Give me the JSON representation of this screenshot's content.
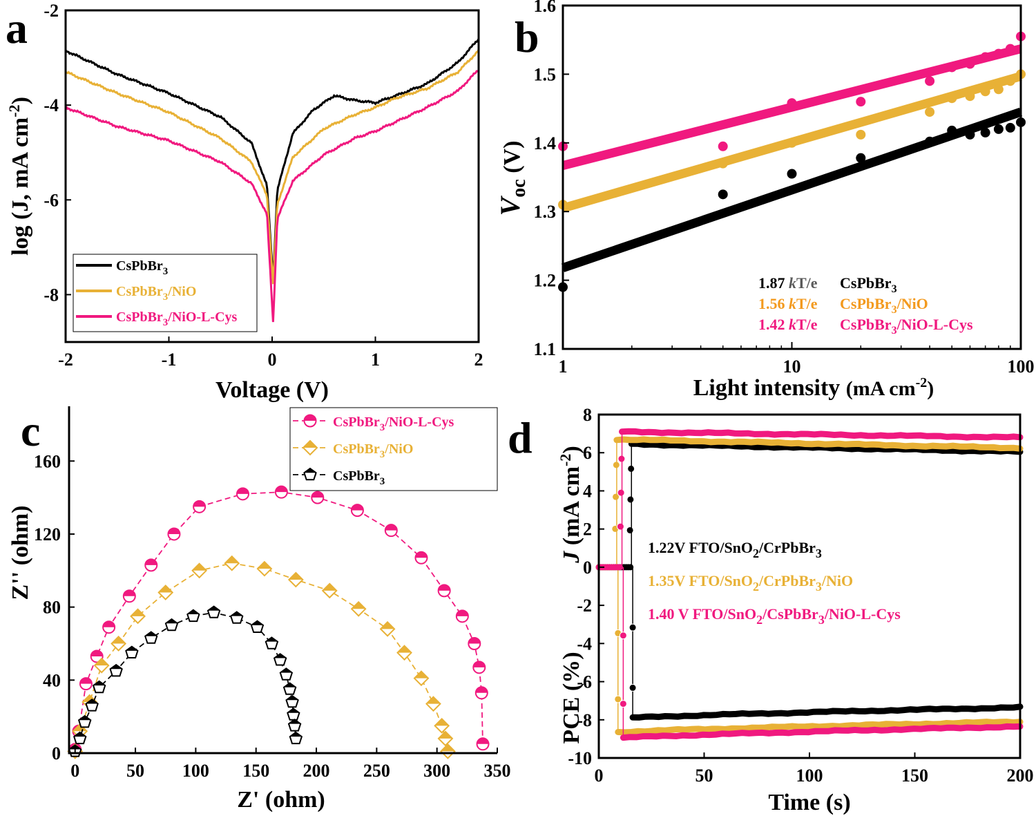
{
  "colors": {
    "black": "#000000",
    "gold": "#E8B136",
    "pink": "#F0197F",
    "gray": "#5a5a5a",
    "orange": "#F39A1E"
  },
  "chart_data": [
    {
      "id": "a",
      "panel_label": "a",
      "type": "line",
      "xlabel": "Voltage (V)",
      "ylabel": "log (J, mA cm",
      "ylabel_sup": "-2",
      "ylabel_close": ")",
      "xlim": [
        -2,
        2
      ],
      "ylim": [
        -9,
        -2
      ],
      "xticks": [
        "-2",
        "-1",
        "0",
        "1",
        "2"
      ],
      "yticks": [
        "-2",
        "-4",
        "-6",
        "-8"
      ],
      "legend": [
        {
          "base": "CsPbBr",
          "sub": "3",
          "rest": "",
          "color": "#000000"
        },
        {
          "base": "CsPbBr",
          "sub": "3",
          "rest": "/NiO",
          "color": "#E8B136"
        },
        {
          "base": "CsPbBr",
          "sub": "3",
          "rest": "/NiO-L-Cys",
          "color": "#F0197F"
        }
      ],
      "series": [
        {
          "name": "CsPbBr3",
          "color": "#000000",
          "x": [
            -2,
            -1.5,
            -1.0,
            -0.5,
            -0.2,
            -0.05,
            0.01,
            0.05,
            0.2,
            0.4,
            0.6,
            0.8,
            1.0,
            1.2,
            1.5,
            1.8,
            2.0
          ],
          "y": [
            -2.85,
            -3.35,
            -3.75,
            -4.25,
            -4.8,
            -5.7,
            -7.7,
            -5.8,
            -4.6,
            -4.1,
            -3.8,
            -3.9,
            -3.95,
            -3.8,
            -3.55,
            -3.1,
            -2.6
          ]
        },
        {
          "name": "CsPbBr3/NiO",
          "color": "#E8B136",
          "x": [
            -2,
            -1.5,
            -1.0,
            -0.5,
            -0.2,
            -0.05,
            0.01,
            0.05,
            0.2,
            0.5,
            0.8,
            1.0,
            1.2,
            1.5,
            1.8,
            2.0
          ],
          "y": [
            -3.3,
            -3.75,
            -4.15,
            -4.7,
            -5.2,
            -5.9,
            -7.8,
            -6.1,
            -5.1,
            -4.5,
            -4.2,
            -4.05,
            -3.85,
            -3.65,
            -3.3,
            -2.85
          ]
        },
        {
          "name": "CsPbBr3/NiO-L-Cys",
          "color": "#F0197F",
          "x": [
            -2,
            -1.5,
            -1.0,
            -0.5,
            -0.2,
            -0.05,
            0.01,
            0.05,
            0.2,
            0.5,
            0.8,
            1.0,
            1.2,
            1.5,
            1.8,
            2.0
          ],
          "y": [
            -4.05,
            -4.45,
            -4.75,
            -5.2,
            -5.65,
            -6.3,
            -8.6,
            -6.4,
            -5.6,
            -5.05,
            -4.7,
            -4.55,
            -4.35,
            -4.05,
            -3.7,
            -3.25
          ]
        }
      ]
    },
    {
      "id": "b",
      "panel_label": "b",
      "type": "scatter",
      "xscale": "log",
      "xlabel": "Light intensity",
      "xlabel_unit": "(mA cm",
      "xlabel_sup": "-2",
      "xlabel_close": ")",
      "ylabel_main": "V",
      "ylabel_sub": "oc",
      "ylabel_unit": "(V)",
      "xlim": [
        1,
        100
      ],
      "ylim": [
        1.1,
        1.6
      ],
      "xticks": [
        {
          "v": 1,
          "label": "1"
        },
        {
          "v": 10,
          "label": "10"
        },
        {
          "v": 100,
          "label": "100"
        }
      ],
      "yticks": [
        "1.1",
        "1.2",
        "1.3",
        "1.4",
        "1.5",
        "1.6"
      ],
      "annotations": [
        {
          "value": "1.87",
          "unit_k": "k",
          "unit_rest": "T/e",
          "base": "CsPbBr",
          "sub": "3",
          "rest": "",
          "color": "#000000",
          "unit_color": "#5a5a5a"
        },
        {
          "value": "1.56",
          "unit_k": "k",
          "unit_rest": "T/e",
          "base": "CsPbBr",
          "sub": "3",
          "rest": "/NiO",
          "color": "#F39A1E",
          "unit_color": "#F39A1E"
        },
        {
          "value": "1.42",
          "unit_k": "k",
          "unit_rest": "T/e",
          "base": "CsPbBr",
          "sub": "3",
          "rest": "/NiO-L-Cys",
          "color": "#F0197F",
          "unit_color": "#F0197F"
        }
      ],
      "series": [
        {
          "name": "CsPbBr3",
          "color": "#000000",
          "fit": [
            1.218,
            1.445
          ],
          "x": [
            1,
            5,
            10,
            20,
            40,
            50,
            60,
            70,
            80,
            90,
            100
          ],
          "y": [
            1.19,
            1.325,
            1.355,
            1.378,
            1.402,
            1.418,
            1.412,
            1.415,
            1.42,
            1.422,
            1.43
          ]
        },
        {
          "name": "CsPbBr3/NiO",
          "color": "#E8B136",
          "fit": [
            1.305,
            1.497
          ],
          "x": [
            1,
            5,
            10,
            20,
            40,
            50,
            60,
            70,
            80,
            90,
            100
          ],
          "y": [
            1.31,
            1.37,
            1.4,
            1.412,
            1.445,
            1.465,
            1.468,
            1.475,
            1.478,
            1.49,
            1.5
          ]
        },
        {
          "name": "CsPbBr3/NiO-L-Cys",
          "color": "#F0197F",
          "fit": [
            1.367,
            1.537
          ],
          "x": [
            1,
            5,
            10,
            20,
            40,
            50,
            60,
            70,
            80,
            90,
            100
          ],
          "y": [
            1.395,
            1.395,
            1.458,
            1.46,
            1.49,
            1.51,
            1.515,
            1.525,
            1.53,
            1.537,
            1.555
          ]
        }
      ]
    },
    {
      "id": "c",
      "panel_label": "c",
      "type": "scatter",
      "xlabel": "Z' (ohm)",
      "ylabel": "Z'' (ohm)",
      "xlim": [
        -5,
        350
      ],
      "ylim": [
        0,
        190
      ],
      "xticks": [
        "0",
        "50",
        "100",
        "150",
        "200",
        "250",
        "300",
        "350"
      ],
      "yticks": [
        "0",
        "40",
        "80",
        "120",
        "160"
      ],
      "legend": [
        {
          "base": "CsPbBr",
          "sub": "3",
          "rest": "/NiO-L-Cys",
          "color": "#F0197F",
          "marker": "halfcircle"
        },
        {
          "base": "CsPbBr",
          "sub": "3",
          "rest": "/NiO",
          "color": "#E8B136",
          "marker": "diamond"
        },
        {
          "base": "CsPbBr",
          "sub": "3",
          "rest": "",
          "color": "#000000",
          "marker": "pentagon"
        }
      ],
      "series": [
        {
          "name": "CsPbBr3/NiO-L-Cys",
          "color": "#F0197F",
          "marker": "halfcircle",
          "x": [
            0,
            3,
            9,
            18,
            28,
            45,
            63,
            82,
            103,
            139,
            171,
            201,
            234,
            262,
            287,
            306,
            321,
            331,
            335,
            337,
            338
          ],
          "y": [
            2,
            12,
            38,
            53,
            69,
            86,
            103,
            120,
            135,
            142,
            143,
            140,
            133,
            122,
            107,
            89,
            75,
            60,
            47,
            33,
            5
          ]
        },
        {
          "name": "CsPbBr3/NiO",
          "color": "#E8B136",
          "marker": "diamond",
          "x": [
            0,
            4,
            12,
            22,
            36,
            52,
            75,
            103,
            130,
            157,
            183,
            211,
            235,
            259,
            273,
            287,
            297,
            304,
            307,
            309
          ],
          "y": [
            1,
            12,
            28,
            48,
            60,
            75,
            88,
            100,
            104,
            101,
            95,
            89,
            79,
            68,
            55,
            41,
            27,
            15,
            8,
            1
          ]
        },
        {
          "name": "CsPbBr3",
          "color": "#000000",
          "marker": "pentagon",
          "x": [
            0,
            4,
            8,
            14,
            20,
            34,
            47,
            63,
            80,
            98,
            115,
            134,
            151,
            163,
            170,
            175,
            178,
            180,
            181,
            182,
            183
          ],
          "y": [
            1,
            8,
            17,
            26,
            36,
            45,
            55,
            63,
            70,
            75,
            77,
            74,
            69,
            60,
            51,
            43,
            35,
            28,
            21,
            15,
            8
          ]
        }
      ]
    },
    {
      "id": "d",
      "panel_label": "d",
      "type": "scatter",
      "xlabel": "Time (s)",
      "ylabel_top_main": "J",
      "ylabel_top_unit": "(mA cm",
      "ylabel_top_sup": "-2",
      "ylabel_top_close": ")",
      "ylabel_bottom": "PCE (%)",
      "xlim": [
        0,
        200
      ],
      "ylim": [
        -10,
        8
      ],
      "xticks": [
        "0",
        "50",
        "100",
        "150",
        "200"
      ],
      "yticks": [
        "8",
        "6",
        "4",
        "2",
        "0",
        "-2",
        "-4",
        "-6",
        "-8",
        "-10"
      ],
      "annotations": [
        {
          "value": "1.22V",
          "p1": "FTO/SnO",
          "sub1": "2",
          "p2": "/CrPbBr",
          "sub2": "3",
          "p3": "",
          "color": "#000000"
        },
        {
          "value": "1.35V",
          "p1": "FTO/SnO",
          "sub1": "2",
          "p2": "/CrPbBr",
          "sub2": "3",
          "p3": "/NiO",
          "color": "#E8B136"
        },
        {
          "value": "1.40 V",
          "p1": "FTO/SnO",
          "sub1": "2",
          "p2": "/CsPbBr",
          "sub2": "3",
          "p3": "/NiO-L-Cys",
          "color": "#F0197F"
        }
      ],
      "series": [
        {
          "name": "FTO/SnO2/CrPbBr3",
          "color": "#000000",
          "on_time": 15.5,
          "J_start": 6.45,
          "J_end": 6.05,
          "PCE_start": -7.9,
          "PCE_end": -7.35
        },
        {
          "name": "FTO/SnO2/CrPbBr3/NiO",
          "color": "#E8B136",
          "on_time": 8.5,
          "J_start": 6.7,
          "J_end": 6.25,
          "PCE_start": -8.65,
          "PCE_end": -8.1
        },
        {
          "name": "FTO/SnO2/CsPbBr3/NiO-L-Cys",
          "color": "#F0197F",
          "on_time": 11.0,
          "J_start": 7.1,
          "J_end": 6.8,
          "PCE_start": -8.95,
          "PCE_end": -8.35
        }
      ]
    }
  ]
}
